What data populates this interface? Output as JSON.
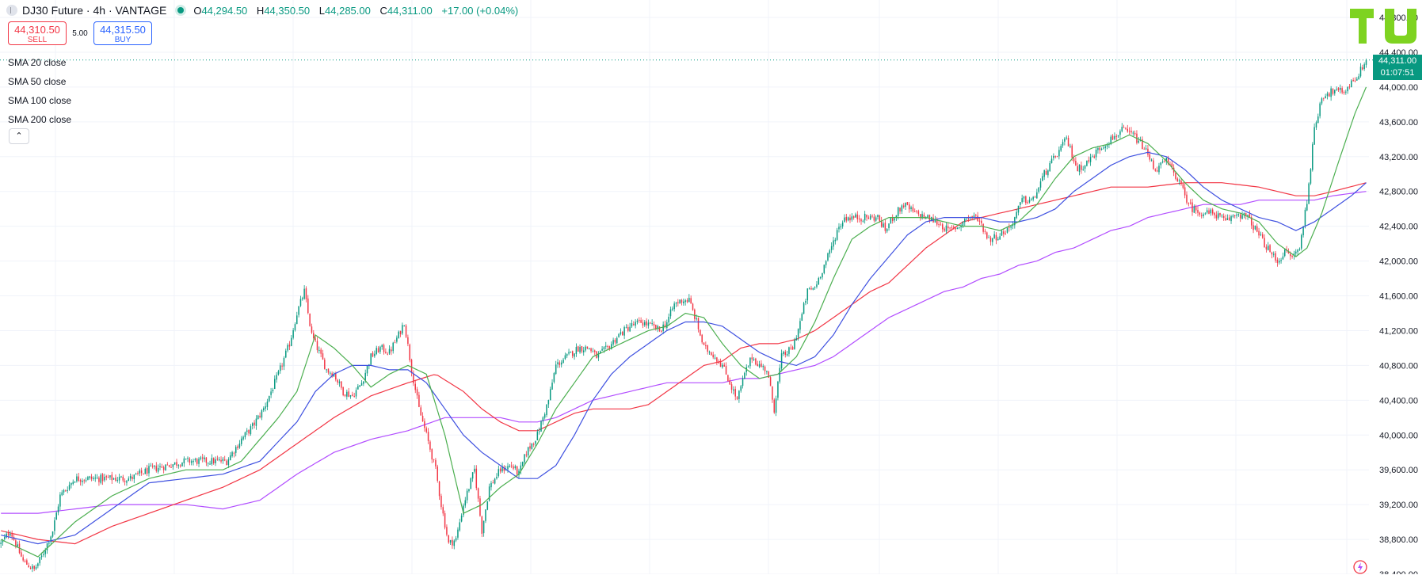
{
  "header": {
    "title": "DJ30 Future · 4h · VANTAGE",
    "open_label": "O",
    "open": "44,294.50",
    "high_label": "H",
    "high": "44,350.50",
    "low_label": "L",
    "low": "44,285.00",
    "close_label": "C",
    "close": "44,311.00",
    "change": "+17.00 (+0.04%)"
  },
  "trade": {
    "sell_price": "44,310.50",
    "sell_label": "SELL",
    "spread": "5.00",
    "buy_price": "44,315.50",
    "buy_label": "BUY"
  },
  "indicators": [
    "SMA 20 close",
    "SMA 50 close",
    "SMA 100 close",
    "SMA 200 close"
  ],
  "last_price": {
    "value": "44,311.00",
    "countdown": "01:07:51"
  },
  "colors": {
    "up": "#089981",
    "down": "#f23645",
    "sma20": "#4caf50",
    "sma50": "#3f51e0",
    "sma100": "#f23645",
    "sma200": "#b24dff",
    "accent_logo": "#7ed321"
  },
  "chart_data": {
    "type": "candlestick",
    "ylim": [
      38400,
      44800
    ],
    "y_ticks": [
      "44,400.00",
      "44,000.00",
      "43,600.00",
      "43,200.00",
      "42,800.00",
      "42,400.00",
      "42,000.00",
      "41,600.00",
      "41,200.00",
      "40,800.00",
      "40,400.00",
      "40,000.00",
      "39,600.00",
      "39,200.00",
      "38,800.00"
    ],
    "y_tick_values": [
      44400,
      44000,
      43600,
      43200,
      42800,
      42400,
      42000,
      41600,
      41200,
      40800,
      40400,
      40000,
      39600,
      39200,
      38800
    ],
    "partial_top_tick": "44,800.00",
    "partial_bottom_tick": "38,400.00",
    "current_price": 44311,
    "close_path": [
      [
        0,
        38750
      ],
      [
        5,
        38900
      ],
      [
        12,
        38550
      ],
      [
        18,
        38450
      ],
      [
        22,
        38600
      ],
      [
        28,
        38900
      ],
      [
        32,
        39300
      ],
      [
        40,
        39500
      ],
      [
        50,
        39500
      ],
      [
        60,
        39500
      ],
      [
        70,
        39500
      ],
      [
        80,
        39600
      ],
      [
        90,
        39650
      ],
      [
        100,
        39700
      ],
      [
        110,
        39700
      ],
      [
        122,
        39700
      ],
      [
        130,
        39950
      ],
      [
        136,
        40100
      ],
      [
        142,
        40300
      ],
      [
        150,
        40700
      ],
      [
        156,
        41050
      ],
      [
        160,
        41400
      ],
      [
        164,
        41650
      ],
      [
        168,
        41150
      ],
      [
        172,
        40950
      ],
      [
        176,
        40750
      ],
      [
        180,
        40700
      ],
      [
        185,
        40500
      ],
      [
        190,
        40450
      ],
      [
        195,
        40600
      ],
      [
        200,
        40900
      ],
      [
        205,
        41000
      ],
      [
        210,
        40950
      ],
      [
        215,
        41150
      ],
      [
        218,
        41300
      ],
      [
        222,
        40750
      ],
      [
        226,
        40300
      ],
      [
        230,
        40000
      ],
      [
        235,
        39600
      ],
      [
        238,
        39200
      ],
      [
        242,
        38750
      ],
      [
        246,
        38800
      ],
      [
        250,
        39200
      ],
      [
        256,
        39600
      ],
      [
        260,
        38900
      ],
      [
        264,
        39400
      ],
      [
        270,
        39600
      ],
      [
        276,
        39650
      ],
      [
        280,
        39550
      ],
      [
        284,
        39800
      ],
      [
        290,
        40000
      ],
      [
        296,
        40400
      ],
      [
        300,
        40800
      ],
      [
        306,
        40900
      ],
      [
        312,
        41000
      ],
      [
        318,
        41000
      ],
      [
        322,
        40900
      ],
      [
        328,
        41000
      ],
      [
        334,
        41150
      ],
      [
        340,
        41250
      ],
      [
        346,
        41300
      ],
      [
        352,
        41250
      ],
      [
        356,
        41200
      ],
      [
        360,
        41300
      ],
      [
        364,
        41500
      ],
      [
        368,
        41550
      ],
      [
        372,
        41550
      ],
      [
        376,
        41300
      ],
      [
        380,
        41000
      ],
      [
        384,
        40950
      ],
      [
        390,
        40800
      ],
      [
        394,
        40600
      ],
      [
        398,
        40400
      ],
      [
        402,
        40700
      ],
      [
        406,
        40900
      ],
      [
        410,
        40800
      ],
      [
        414,
        40750
      ],
      [
        418,
        40300
      ],
      [
        422,
        40900
      ],
      [
        428,
        41000
      ],
      [
        432,
        41300
      ],
      [
        436,
        41650
      ],
      [
        440,
        41700
      ],
      [
        444,
        41900
      ],
      [
        448,
        42100
      ],
      [
        452,
        42350
      ],
      [
        456,
        42500
      ],
      [
        462,
        42500
      ],
      [
        468,
        42500
      ],
      [
        474,
        42500
      ],
      [
        478,
        42350
      ],
      [
        482,
        42500
      ],
      [
        488,
        42650
      ],
      [
        494,
        42550
      ],
      [
        500,
        42500
      ],
      [
        506,
        42450
      ],
      [
        512,
        42350
      ],
      [
        518,
        42400
      ],
      [
        522,
        42500
      ],
      [
        528,
        42500
      ],
      [
        534,
        42250
      ],
      [
        540,
        42300
      ],
      [
        546,
        42400
      ],
      [
        552,
        42700
      ],
      [
        558,
        42700
      ],
      [
        564,
        43000
      ],
      [
        570,
        43200
      ],
      [
        576,
        43400
      ],
      [
        582,
        43050
      ],
      [
        588,
        43150
      ],
      [
        594,
        43300
      ],
      [
        600,
        43400
      ],
      [
        606,
        43500
      ],
      [
        612,
        43450
      ],
      [
        618,
        43300
      ],
      [
        624,
        43050
      ],
      [
        630,
        43150
      ],
      [
        636,
        42950
      ],
      [
        640,
        42750
      ],
      [
        644,
        42600
      ],
      [
        650,
        42550
      ],
      [
        656,
        42550
      ],
      [
        662,
        42450
      ],
      [
        668,
        42550
      ],
      [
        674,
        42500
      ],
      [
        680,
        42300
      ],
      [
        686,
        42100
      ],
      [
        690,
        42000
      ],
      [
        694,
        42100
      ],
      [
        698,
        42050
      ],
      [
        702,
        42150
      ],
      [
        706,
        42700
      ],
      [
        710,
        43500
      ],
      [
        714,
        43900
      ],
      [
        720,
        43950
      ],
      [
        726,
        43950
      ],
      [
        730,
        44050
      ],
      [
        734,
        44150
      ],
      [
        738,
        44311
      ]
    ],
    "sma20_path": [
      [
        0,
        38800
      ],
      [
        20,
        38600
      ],
      [
        40,
        39000
      ],
      [
        60,
        39300
      ],
      [
        80,
        39500
      ],
      [
        100,
        39600
      ],
      [
        120,
        39600
      ],
      [
        130,
        39700
      ],
      [
        150,
        40200
      ],
      [
        160,
        40500
      ],
      [
        170,
        41150
      ],
      [
        180,
        41000
      ],
      [
        190,
        40800
      ],
      [
        200,
        40550
      ],
      [
        210,
        40700
      ],
      [
        220,
        40800
      ],
      [
        230,
        40700
      ],
      [
        240,
        40000
      ],
      [
        250,
        39100
      ],
      [
        260,
        39200
      ],
      [
        270,
        39400
      ],
      [
        280,
        39550
      ],
      [
        290,
        39900
      ],
      [
        300,
        40300
      ],
      [
        310,
        40600
      ],
      [
        320,
        40900
      ],
      [
        330,
        41000
      ],
      [
        340,
        41100
      ],
      [
        350,
        41200
      ],
      [
        360,
        41250
      ],
      [
        370,
        41400
      ],
      [
        380,
        41350
      ],
      [
        390,
        41050
      ],
      [
        400,
        40800
      ],
      [
        410,
        40650
      ],
      [
        420,
        40700
      ],
      [
        430,
        40900
      ],
      [
        440,
        41300
      ],
      [
        450,
        41800
      ],
      [
        460,
        42250
      ],
      [
        470,
        42400
      ],
      [
        480,
        42500
      ],
      [
        490,
        42500
      ],
      [
        500,
        42500
      ],
      [
        510,
        42450
      ],
      [
        520,
        42400
      ],
      [
        530,
        42400
      ],
      [
        540,
        42350
      ],
      [
        550,
        42450
      ],
      [
        560,
        42650
      ],
      [
        570,
        42950
      ],
      [
        580,
        43200
      ],
      [
        590,
        43300
      ],
      [
        600,
        43350
      ],
      [
        610,
        43450
      ],
      [
        620,
        43350
      ],
      [
        630,
        43150
      ],
      [
        640,
        42900
      ],
      [
        650,
        42700
      ],
      [
        660,
        42600
      ],
      [
        670,
        42550
      ],
      [
        680,
        42450
      ],
      [
        690,
        42200
      ],
      [
        700,
        42050
      ],
      [
        706,
        42150
      ],
      [
        714,
        42550
      ],
      [
        724,
        43200
      ],
      [
        732,
        43700
      ],
      [
        738,
        44000
      ]
    ],
    "sma50_path": [
      [
        0,
        38850
      ],
      [
        20,
        38750
      ],
      [
        40,
        38850
      ],
      [
        60,
        39150
      ],
      [
        80,
        39450
      ],
      [
        100,
        39500
      ],
      [
        120,
        39550
      ],
      [
        140,
        39700
      ],
      [
        160,
        40150
      ],
      [
        170,
        40500
      ],
      [
        180,
        40700
      ],
      [
        190,
        40800
      ],
      [
        200,
        40800
      ],
      [
        210,
        40750
      ],
      [
        220,
        40750
      ],
      [
        230,
        40600
      ],
      [
        240,
        40300
      ],
      [
        250,
        40000
      ],
      [
        260,
        39800
      ],
      [
        270,
        39650
      ],
      [
        280,
        39500
      ],
      [
        290,
        39500
      ],
      [
        300,
        39650
      ],
      [
        310,
        40000
      ],
      [
        320,
        40400
      ],
      [
        330,
        40700
      ],
      [
        340,
        40900
      ],
      [
        350,
        41050
      ],
      [
        360,
        41200
      ],
      [
        370,
        41300
      ],
      [
        380,
        41300
      ],
      [
        390,
        41250
      ],
      [
        400,
        41100
      ],
      [
        410,
        40950
      ],
      [
        420,
        40850
      ],
      [
        430,
        40800
      ],
      [
        440,
        40900
      ],
      [
        450,
        41150
      ],
      [
        460,
        41500
      ],
      [
        470,
        41800
      ],
      [
        480,
        42050
      ],
      [
        490,
        42300
      ],
      [
        500,
        42450
      ],
      [
        510,
        42500
      ],
      [
        520,
        42500
      ],
      [
        530,
        42500
      ],
      [
        540,
        42450
      ],
      [
        550,
        42450
      ],
      [
        560,
        42500
      ],
      [
        570,
        42600
      ],
      [
        580,
        42800
      ],
      [
        590,
        42950
      ],
      [
        600,
        43100
      ],
      [
        610,
        43200
      ],
      [
        620,
        43250
      ],
      [
        630,
        43200
      ],
      [
        640,
        43050
      ],
      [
        650,
        42850
      ],
      [
        660,
        42700
      ],
      [
        670,
        42600
      ],
      [
        680,
        42500
      ],
      [
        690,
        42450
      ],
      [
        700,
        42350
      ],
      [
        710,
        42450
      ],
      [
        720,
        42600
      ],
      [
        730,
        42750
      ],
      [
        738,
        42900
      ]
    ],
    "sma100_path": [
      [
        0,
        38900
      ],
      [
        20,
        38800
      ],
      [
        40,
        38750
      ],
      [
        60,
        38950
      ],
      [
        80,
        39100
      ],
      [
        100,
        39250
      ],
      [
        120,
        39400
      ],
      [
        140,
        39600
      ],
      [
        160,
        39900
      ],
      [
        180,
        40200
      ],
      [
        200,
        40450
      ],
      [
        220,
        40600
      ],
      [
        235,
        40700
      ],
      [
        250,
        40500
      ],
      [
        260,
        40300
      ],
      [
        270,
        40150
      ],
      [
        280,
        40050
      ],
      [
        290,
        40050
      ],
      [
        300,
        40150
      ],
      [
        310,
        40250
      ],
      [
        320,
        40300
      ],
      [
        340,
        40300
      ],
      [
        350,
        40350
      ],
      [
        360,
        40500
      ],
      [
        370,
        40650
      ],
      [
        380,
        40800
      ],
      [
        390,
        40850
      ],
      [
        400,
        41000
      ],
      [
        410,
        41050
      ],
      [
        420,
        41050
      ],
      [
        430,
        41100
      ],
      [
        440,
        41200
      ],
      [
        450,
        41350
      ],
      [
        460,
        41500
      ],
      [
        470,
        41650
      ],
      [
        480,
        41750
      ],
      [
        490,
        41950
      ],
      [
        500,
        42150
      ],
      [
        510,
        42300
      ],
      [
        520,
        42450
      ],
      [
        530,
        42500
      ],
      [
        540,
        42550
      ],
      [
        550,
        42600
      ],
      [
        560,
        42650
      ],
      [
        570,
        42700
      ],
      [
        580,
        42750
      ],
      [
        590,
        42800
      ],
      [
        600,
        42850
      ],
      [
        620,
        42850
      ],
      [
        640,
        42900
      ],
      [
        660,
        42900
      ],
      [
        680,
        42850
      ],
      [
        700,
        42750
      ],
      [
        710,
        42750
      ],
      [
        720,
        42800
      ],
      [
        738,
        42900
      ]
    ],
    "sma200_path": [
      [
        0,
        39100
      ],
      [
        20,
        39100
      ],
      [
        40,
        39150
      ],
      [
        60,
        39200
      ],
      [
        80,
        39200
      ],
      [
        100,
        39200
      ],
      [
        120,
        39150
      ],
      [
        140,
        39250
      ],
      [
        160,
        39550
      ],
      [
        180,
        39800
      ],
      [
        200,
        39950
      ],
      [
        220,
        40050
      ],
      [
        240,
        40200
      ],
      [
        250,
        40200
      ],
      [
        260,
        40200
      ],
      [
        270,
        40200
      ],
      [
        280,
        40150
      ],
      [
        290,
        40150
      ],
      [
        300,
        40200
      ],
      [
        310,
        40300
      ],
      [
        320,
        40400
      ],
      [
        330,
        40450
      ],
      [
        340,
        40500
      ],
      [
        350,
        40550
      ],
      [
        360,
        40600
      ],
      [
        370,
        40600
      ],
      [
        380,
        40600
      ],
      [
        390,
        40600
      ],
      [
        400,
        40650
      ],
      [
        410,
        40650
      ],
      [
        420,
        40700
      ],
      [
        430,
        40750
      ],
      [
        440,
        40800
      ],
      [
        450,
        40900
      ],
      [
        460,
        41050
      ],
      [
        470,
        41200
      ],
      [
        480,
        41350
      ],
      [
        490,
        41450
      ],
      [
        500,
        41550
      ],
      [
        510,
        41650
      ],
      [
        520,
        41700
      ],
      [
        530,
        41800
      ],
      [
        540,
        41850
      ],
      [
        550,
        41950
      ],
      [
        560,
        42000
      ],
      [
        570,
        42100
      ],
      [
        580,
        42150
      ],
      [
        590,
        42250
      ],
      [
        600,
        42350
      ],
      [
        610,
        42400
      ],
      [
        620,
        42500
      ],
      [
        630,
        42550
      ],
      [
        640,
        42600
      ],
      [
        650,
        42650
      ],
      [
        660,
        42650
      ],
      [
        670,
        42650
      ],
      [
        680,
        42700
      ],
      [
        690,
        42700
      ],
      [
        700,
        42700
      ],
      [
        710,
        42700
      ],
      [
        720,
        42750
      ],
      [
        738,
        42800
      ]
    ]
  }
}
